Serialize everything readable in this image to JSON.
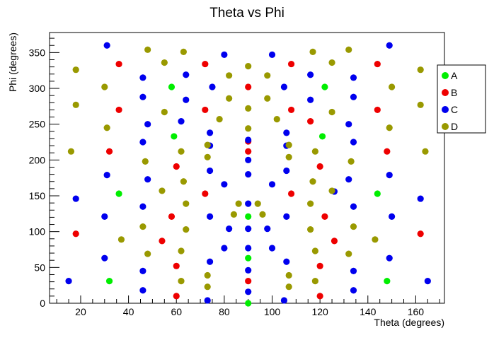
{
  "chart_data": {
    "type": "scatter",
    "title": "Theta vs Phi",
    "xlabel": "Theta (degrees)",
    "ylabel": "Phi (degrees)",
    "xlim": [
      7,
      172
    ],
    "ylim": [
      0,
      378
    ],
    "xticks": [
      20,
      40,
      60,
      80,
      100,
      120,
      140,
      160
    ],
    "yticks": [
      0,
      50,
      100,
      150,
      200,
      250,
      300,
      350
    ],
    "grid": false,
    "legend_position": "right",
    "series": [
      {
        "name": "A",
        "color": "#00ee00",
        "points": [
          [
            90,
            0
          ],
          [
            90,
            63
          ],
          [
            90,
            121
          ],
          [
            36,
            153
          ],
          [
            144,
            153
          ],
          [
            32,
            31
          ],
          [
            148,
            31
          ],
          [
            58,
            302
          ],
          [
            122,
            302
          ],
          [
            59,
            233
          ],
          [
            121,
            233
          ]
        ]
      },
      {
        "name": "B",
        "color": "#ee0000",
        "points": [
          [
            90,
            31
          ],
          [
            90,
            212
          ],
          [
            90,
            226
          ],
          [
            90,
            302
          ],
          [
            54,
            87
          ],
          [
            126,
            87
          ],
          [
            58,
            121
          ],
          [
            122,
            121
          ],
          [
            60,
            52
          ],
          [
            120,
            52
          ],
          [
            60,
            10
          ],
          [
            120,
            10
          ],
          [
            60,
            191
          ],
          [
            120,
            191
          ],
          [
            72,
            153
          ],
          [
            108,
            153
          ],
          [
            72,
            334
          ],
          [
            108,
            334
          ],
          [
            72,
            270
          ],
          [
            108,
            270
          ],
          [
            18,
            97
          ],
          [
            162,
            97
          ],
          [
            32,
            212
          ],
          [
            148,
            212
          ],
          [
            36,
            334
          ],
          [
            144,
            334
          ],
          [
            36,
            270
          ],
          [
            144,
            270
          ],
          [
            116,
            254
          ]
        ]
      },
      {
        "name": "C",
        "color": "#0000ee",
        "points": [
          [
            90,
            16
          ],
          [
            90,
            46
          ],
          [
            90,
            77
          ],
          [
            90,
            104
          ],
          [
            90,
            139
          ],
          [
            90,
            180
          ],
          [
            90,
            200
          ],
          [
            90,
            228
          ],
          [
            15,
            31
          ],
          [
            30,
            63
          ],
          [
            30,
            121
          ],
          [
            31,
            179
          ],
          [
            31,
            360
          ],
          [
            18,
            146
          ],
          [
            46,
            18
          ],
          [
            46,
            45
          ],
          [
            46,
            135
          ],
          [
            46,
            225
          ],
          [
            46,
            288
          ],
          [
            46,
            315
          ],
          [
            48,
            173
          ],
          [
            48,
            250
          ],
          [
            62,
            254
          ],
          [
            64,
            284
          ],
          [
            64,
            319
          ],
          [
            73,
            4
          ],
          [
            74,
            58
          ],
          [
            74,
            121
          ],
          [
            74,
            185
          ],
          [
            74,
            238
          ],
          [
            74,
            220
          ],
          [
            75,
            302
          ],
          [
            80,
            77
          ],
          [
            80,
            166
          ],
          [
            80,
            347
          ],
          [
            82,
            104
          ],
          [
            98,
            104
          ],
          [
            100,
            77
          ],
          [
            100,
            166
          ],
          [
            100,
            347
          ],
          [
            105,
            4
          ],
          [
            106,
            58
          ],
          [
            106,
            121
          ],
          [
            106,
            185
          ],
          [
            106,
            238
          ],
          [
            106,
            220
          ],
          [
            105,
            302
          ],
          [
            116,
            284
          ],
          [
            116,
            319
          ],
          [
            126,
            156
          ],
          [
            132,
            173
          ],
          [
            132,
            250
          ],
          [
            134,
            18
          ],
          [
            134,
            45
          ],
          [
            134,
            135
          ],
          [
            134,
            225
          ],
          [
            134,
            288
          ],
          [
            134,
            315
          ],
          [
            149,
            63
          ],
          [
            150,
            121
          ],
          [
            149,
            179
          ],
          [
            149,
            360
          ],
          [
            162,
            146
          ],
          [
            165,
            31
          ]
        ]
      },
      {
        "name": "D",
        "color": "#999900",
        "points": [
          [
            90,
            244
          ],
          [
            90,
            272
          ],
          [
            90,
            331
          ],
          [
            16,
            212
          ],
          [
            18,
            277
          ],
          [
            18,
            326
          ],
          [
            30,
            302
          ],
          [
            31,
            245
          ],
          [
            37,
            89
          ],
          [
            46,
            107
          ],
          [
            47,
            198
          ],
          [
            48,
            69
          ],
          [
            48,
            354
          ],
          [
            54,
            157
          ],
          [
            55,
            267
          ],
          [
            55,
            336
          ],
          [
            62,
            31
          ],
          [
            62,
            73
          ],
          [
            62,
            212
          ],
          [
            63,
            170
          ],
          [
            63,
            351
          ],
          [
            64,
            103
          ],
          [
            64,
            139
          ],
          [
            73,
            23
          ],
          [
            73,
            39
          ],
          [
            73,
            204
          ],
          [
            73,
            221
          ],
          [
            82,
            286
          ],
          [
            82,
            318
          ],
          [
            78,
            257
          ],
          [
            84,
            124
          ],
          [
            86,
            139
          ],
          [
            94,
            139
          ],
          [
            96,
            124
          ],
          [
            98,
            286
          ],
          [
            98,
            318
          ],
          [
            102,
            257
          ],
          [
            107,
            23
          ],
          [
            107,
            39
          ],
          [
            107,
            204
          ],
          [
            107,
            221
          ],
          [
            116,
            103
          ],
          [
            116,
            139
          ],
          [
            117,
            170
          ],
          [
            117,
            351
          ],
          [
            118,
            31
          ],
          [
            118,
            73
          ],
          [
            118,
            212
          ],
          [
            125,
            157
          ],
          [
            125,
            267
          ],
          [
            125,
            336
          ],
          [
            132,
            69
          ],
          [
            132,
            354
          ],
          [
            133,
            198
          ],
          [
            134,
            107
          ],
          [
            143,
            89
          ],
          [
            149,
            245
          ],
          [
            150,
            302
          ],
          [
            162,
            277
          ],
          [
            162,
            326
          ],
          [
            164,
            212
          ]
        ]
      }
    ]
  }
}
